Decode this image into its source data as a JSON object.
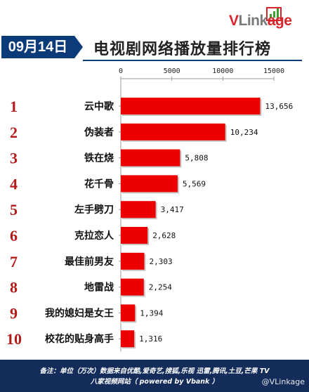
{
  "header": {
    "logo_v": "V",
    "logo_link": "Link",
    "logo_age": "age",
    "date": "09月14日",
    "title": "电视剧网络播放量排行榜"
  },
  "chart_data": {
    "type": "bar",
    "orientation": "horizontal",
    "categories": [
      "云中歌",
      "伪装者",
      "铁在烧",
      "花千骨",
      "左手劈刀",
      "克拉恋人",
      "最佳前男友",
      "地雷战",
      "我的媳妇是女王",
      "校花的贴身高手"
    ],
    "ranks": [
      "1",
      "2",
      "3",
      "4",
      "5",
      "6",
      "7",
      "8",
      "9",
      "10"
    ],
    "values": [
      13656,
      10234,
      5808,
      5569,
      3417,
      2628,
      2303,
      2254,
      1394,
      1316
    ],
    "value_labels": [
      "13,656",
      "10,234",
      "5,808",
      "5,569",
      "3,417",
      "2,628",
      "2,303",
      "2,254",
      "1,394",
      "1,316"
    ],
    "xticks": [
      "0",
      "5000",
      "10000",
      "15000"
    ],
    "xlim": [
      0,
      15000
    ],
    "bar_color": "#ee0000",
    "rank_color": "#b31b1b",
    "grid": false
  },
  "footer": {
    "line1": "备注：单位（万次）数据来自优酷,爱奇艺,搜狐,乐视 迅雷,腾讯,土豆,芒果 TV",
    "line2": "八家视频网站（ powered by Vbank ）",
    "watermark": "@VLinkage"
  }
}
